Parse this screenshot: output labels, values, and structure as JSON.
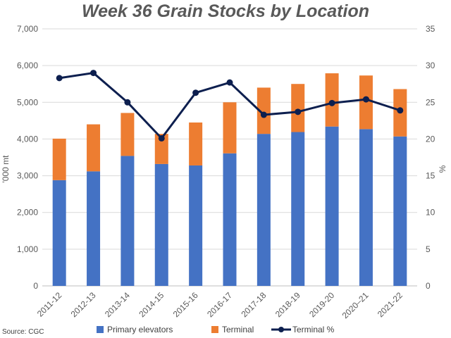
{
  "chart_data": {
    "type": "bar",
    "stacked": true,
    "title": "Week 36 Grain Stocks by Location",
    "ylabel": "'000 mt",
    "y2label": "%",
    "ylim": [
      0,
      7000
    ],
    "y2lim": [
      0,
      35
    ],
    "y_ticks": [
      "0",
      "1,000",
      "2,000",
      "3,000",
      "4,000",
      "5,000",
      "6,000",
      "7,000"
    ],
    "y2_ticks": [
      "0",
      "5",
      "10",
      "15",
      "20",
      "25",
      "30",
      "35"
    ],
    "categories": [
      "2011-12",
      "2012-13",
      "2013-14",
      "2014-15",
      "2015-16",
      "2016-17",
      "2017-18",
      "2018-19",
      "2019-20",
      "2020–21",
      "2021-22"
    ],
    "series": [
      {
        "name": "Primary elevators",
        "type": "bar",
        "axis": "left",
        "color": "#4472C4",
        "values": [
          2880,
          3120,
          3540,
          3320,
          3280,
          3610,
          4140,
          4190,
          4340,
          4270,
          4070
        ]
      },
      {
        "name": "Terminal",
        "type": "bar",
        "axis": "left",
        "color": "#ED7D31",
        "values": [
          1130,
          1280,
          1170,
          820,
          1170,
          1390,
          1260,
          1310,
          1450,
          1460,
          1290
        ]
      },
      {
        "name": "Terminal %",
        "type": "line",
        "axis": "right",
        "color": "#0D1F4F",
        "values": [
          28.3,
          29.0,
          25.0,
          20.1,
          26.3,
          27.7,
          23.3,
          23.7,
          24.9,
          25.4,
          23.9
        ]
      }
    ],
    "legend": "bottom",
    "grid": true
  },
  "source": "Source: CGC"
}
